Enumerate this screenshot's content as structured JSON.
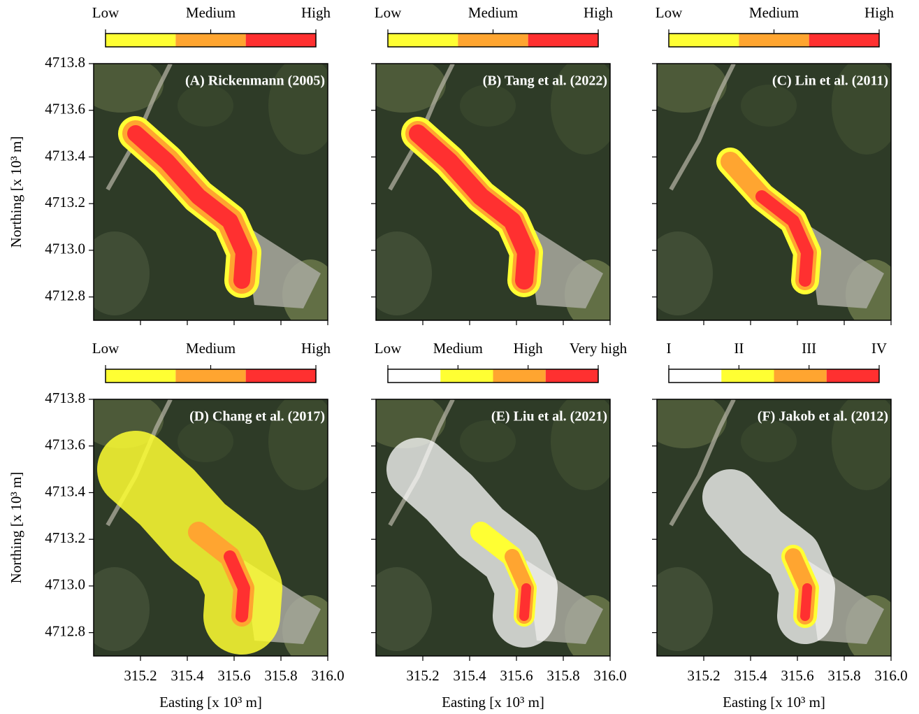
{
  "panels": [
    {
      "title": "(A) Rickenmann (2005)",
      "legend": {
        "labels": [
          "Low",
          "Medium",
          "High"
        ],
        "colors": [
          "#ffff33",
          "#ffa530",
          "#ff3030"
        ]
      }
    },
    {
      "title": "(B) Tang et al. (2022)",
      "legend": {
        "labels": [
          "Low",
          "Medium",
          "High"
        ],
        "colors": [
          "#ffff33",
          "#ffa530",
          "#ff3030"
        ]
      }
    },
    {
      "title": "(C) Lin et al. (2011)",
      "legend": {
        "labels": [
          "Low",
          "Medium",
          "High"
        ],
        "colors": [
          "#ffff33",
          "#ffa530",
          "#ff3030"
        ]
      }
    },
    {
      "title": "(D) Chang et al. (2017)",
      "legend": {
        "labels": [
          "Low",
          "Medium",
          "High"
        ],
        "colors": [
          "#ffff33",
          "#ffa530",
          "#ff3030"
        ]
      }
    },
    {
      "title": "(E) Liu et al. (2021)",
      "legend": {
        "labels": [
          "Low",
          "Medium",
          "High",
          "Very high"
        ],
        "colors": [
          "#ffffff",
          "#ffff33",
          "#ffa530",
          "#ff3030"
        ]
      }
    },
    {
      "title": "(F) Jakob et al. (2012)",
      "legend": {
        "labels": [
          "I",
          "II",
          "III",
          "IV"
        ],
        "colors": [
          "#ffffff",
          "#ffff33",
          "#ffa530",
          "#ff3030"
        ]
      }
    }
  ],
  "axes": {
    "x_label": "Easting [x 10³ m]",
    "y_label": "Northing [x 10³ m]",
    "xlim": [
      315.0,
      316.0
    ],
    "ylim": [
      4712.7,
      4713.8
    ],
    "xticks": [
      315.2,
      315.4,
      315.6,
      315.8,
      {
        "value": 316,
        "label": "316.0"
      }
    ],
    "yticks": [
      4712.8,
      {
        "value": 4713,
        "label": "4713.0"
      },
      4713.2,
      4713.4,
      4713.6,
      4713.8
    ]
  }
}
